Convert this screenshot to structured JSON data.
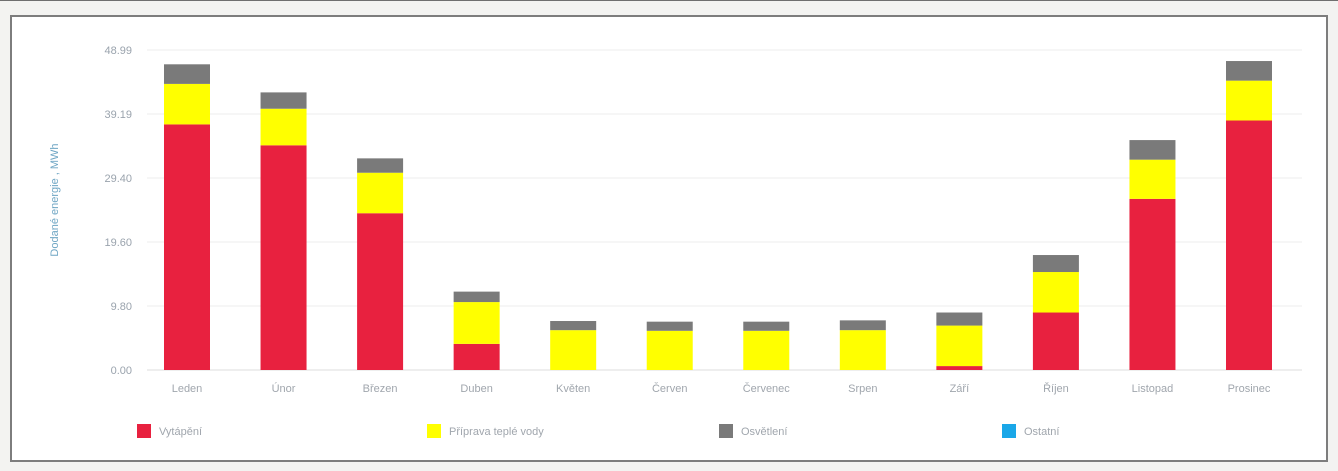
{
  "chart_data": {
    "type": "bar",
    "stacked": true,
    "ylabel": "Dodané energie , MWh",
    "ylim": [
      0,
      48.99
    ],
    "yticks": [
      "0.00",
      "9.80",
      "19.60",
      "29.40",
      "39.19",
      "48.99"
    ],
    "grid": true,
    "legend_position": "bottom",
    "categories": [
      "Leden",
      "Únor",
      "Březen",
      "Duben",
      "Květen",
      "Červen",
      "Červenec",
      "Srpen",
      "Září",
      "Říjen",
      "Listopad",
      "Prosinec"
    ],
    "series": [
      {
        "name": "Vytápění",
        "color": "#e8213f",
        "values": [
          37.6,
          34.4,
          24.0,
          4.0,
          0,
          0,
          0,
          0,
          0.6,
          8.8,
          26.2,
          38.2
        ]
      },
      {
        "name": "Příprava teplé vody",
        "color": "#ffff00",
        "values": [
          6.2,
          5.6,
          6.2,
          6.4,
          6.1,
          6.0,
          6.0,
          6.1,
          6.2,
          6.2,
          6.0,
          6.1
        ]
      },
      {
        "name": "Osvětlení",
        "color": "#7a7a7a",
        "values": [
          3.0,
          2.5,
          2.2,
          1.6,
          1.4,
          1.4,
          1.4,
          1.5,
          2.0,
          2.6,
          3.0,
          3.0
        ]
      },
      {
        "name": "Ostatní",
        "color": "#1aa7e8",
        "values": [
          0,
          0,
          0,
          0,
          0,
          0,
          0,
          0,
          0,
          0,
          0,
          0
        ]
      }
    ]
  }
}
